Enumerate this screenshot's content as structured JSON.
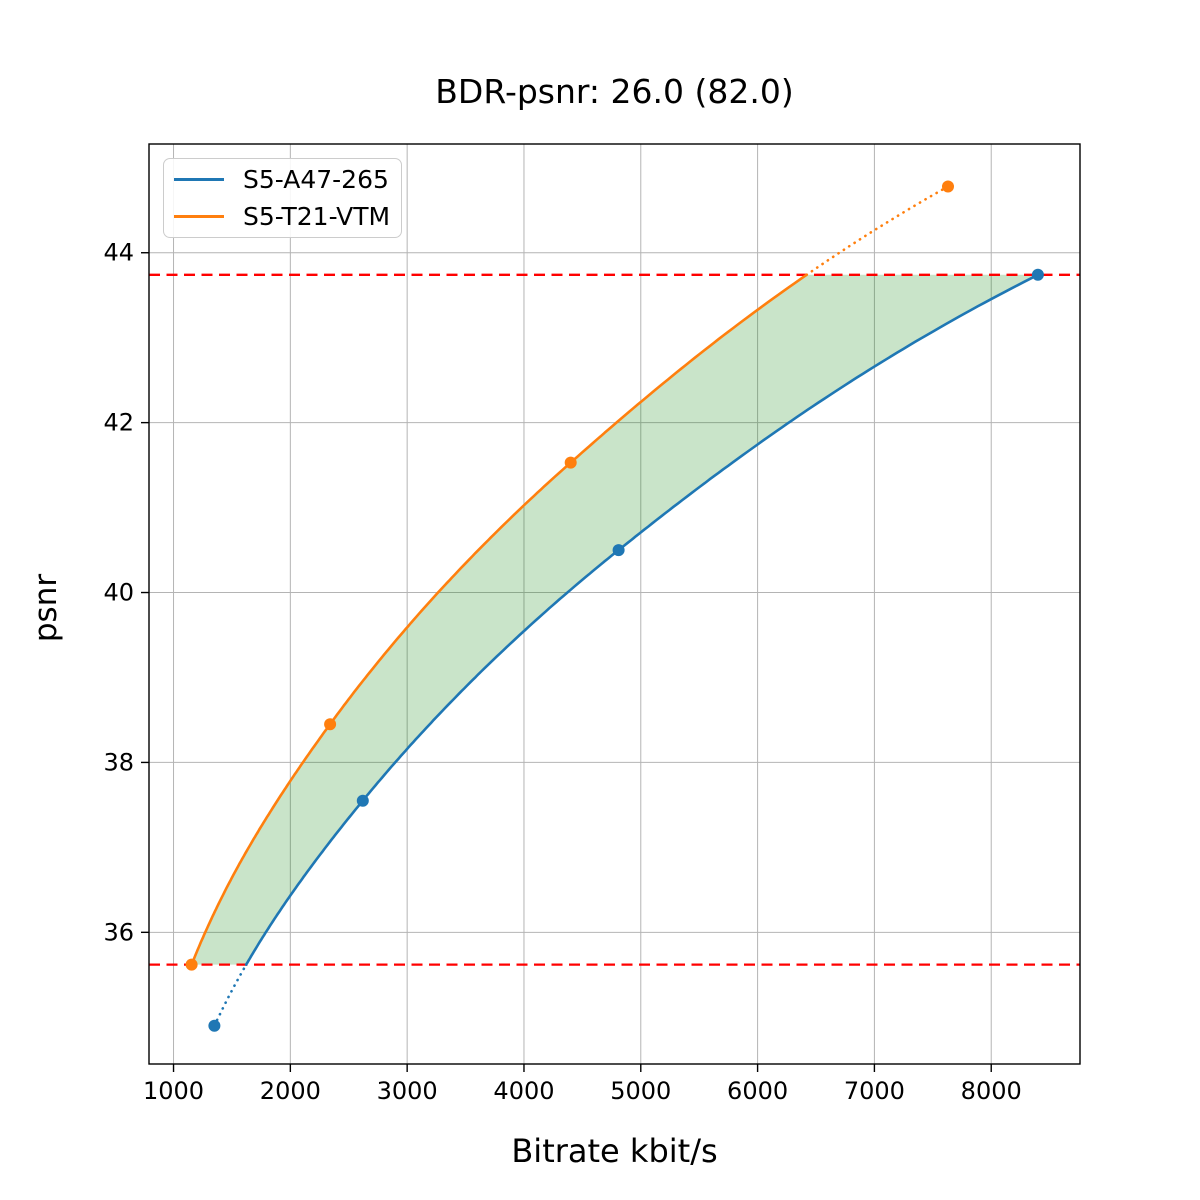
{
  "chart_data": {
    "type": "line",
    "title": "BDR-psnr: 26.0 (82.0)",
    "xlabel": "Bitrate kbit/s",
    "ylabel": "psnr",
    "xlim": [
      790,
      8760
    ],
    "ylim": [
      34.45,
      45.28
    ],
    "xticks": [
      1000,
      2000,
      3000,
      4000,
      5000,
      6000,
      7000,
      8000
    ],
    "yticks": [
      36,
      38,
      40,
      42,
      44
    ],
    "grid": true,
    "grid_color": "#b4b4b4",
    "legend_position": "upper left",
    "interpolation": "pchip-log-x",
    "series": [
      {
        "name": "S5-A47-265",
        "color": "#1f77b4",
        "points": [
          [
            1350,
            34.9
          ],
          [
            2620,
            37.55
          ],
          [
            4810,
            40.5
          ],
          [
            8400,
            43.74
          ]
        ]
      },
      {
        "name": "S5-T21-VTM",
        "color": "#ff7f0e",
        "points": [
          [
            1155,
            35.62
          ],
          [
            2340,
            38.45
          ],
          [
            4400,
            41.53
          ],
          [
            7630,
            44.78
          ]
        ]
      }
    ],
    "hlines": {
      "color": "#ff0000",
      "style": "dashed",
      "values": [
        35.62,
        43.74
      ],
      "meaning": "common psnr overlap bounds"
    },
    "shaded_region": {
      "color": "#008000",
      "opacity": 0.21,
      "description": "area between the two rate-distortion curves within the common psnr range"
    }
  }
}
